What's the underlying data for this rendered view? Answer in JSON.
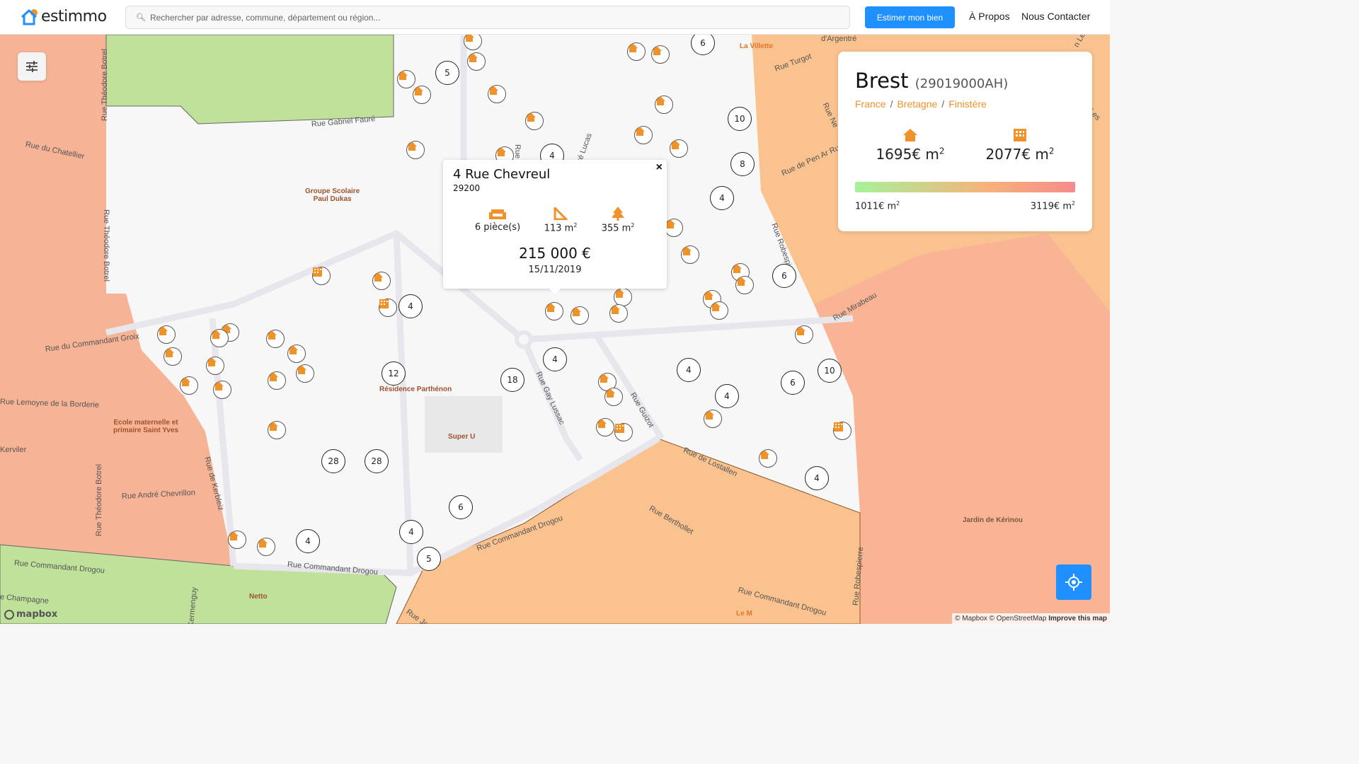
{
  "header": {
    "logo": "estimmo",
    "search_placeholder": "Rechercher par adresse, commune, département ou région...",
    "estimate_button": "Estimer mon bien",
    "nav": [
      "À Propos",
      "Nous Contacter"
    ]
  },
  "colors": {
    "accent": "#1e90ff",
    "brand_orange": "#f0922a",
    "zone_red": "#f7b395",
    "zone_orange": "#fac28e",
    "zone_green": "#bfe19a"
  },
  "map": {
    "streets": [
      "Rue Théodore Botrel",
      "Rue Gabriel Fauré",
      "Rue du Chatellier",
      "Rue Théodore Botrel",
      "Rue du Commandant Groix",
      "Rue Lemoyne de la Borderie",
      "Kerviler",
      "Rue de Kerbleiz",
      "Rue André Chevrillon",
      "Rue Théodore Botrel",
      "Rue Commandant Drogou",
      "Rue Commandant Drogou",
      "e Champagne",
      "Kermenguy",
      "Rue Commandant Drogou",
      "Rue Gay Lussac",
      "Rue Guizot",
      "Rue de Lostallen",
      "Rue Berthollet",
      "Rue Commandant Drogou",
      "Rue Robespierre",
      "Rue Mirabeau",
      "Rue Robespierre",
      "Rue Turgot",
      "Rue de Pen Ar Ru",
      "Rue Ne",
      "Rue Josen",
      "Rue L",
      "siré Lucas",
      "d'Argentré",
      "n Le B",
      "Les"
    ],
    "pois": [
      "Groupe Scolaire\nPaul Dukas",
      "Résidence Parthénon",
      "Ecole maternelle et\nprimaire Saint Yves",
      "Super U",
      "Netto",
      "La Villette",
      "Jardin de Kérinou",
      "Le M"
    ],
    "clusters": [
      "5",
      "6",
      "10",
      "8",
      "4",
      "4",
      "4",
      "6",
      "4",
      "12",
      "18",
      "4",
      "4",
      "6",
      "10",
      "4",
      "6",
      "28",
      "28",
      "6",
      "4",
      "4",
      "5"
    ],
    "attribution": "© Mapbox © OpenStreetMap",
    "improve": "Improve this map",
    "mapbox_logo": "mapbox"
  },
  "popup": {
    "address": "4 Rue Chevreul",
    "zip": "29200",
    "rooms": "6 pièce(s)",
    "area": "113 m",
    "area_unit_exp": "2",
    "land": "355 m",
    "land_unit_exp": "2",
    "price": "215 000 €",
    "date": "15/11/2019",
    "close": "×",
    "icons": [
      "sofa-icon",
      "ruler-icon",
      "tree-icon"
    ]
  },
  "card": {
    "city": "Brest",
    "code": "(29019000AH)",
    "breadcrumb": [
      "France",
      "Bretagne",
      "Finistère"
    ],
    "house_price": "1695€ m",
    "apartment_price": "2077€ m",
    "exp": "2",
    "min": "1011€ m",
    "max": "3119€ m"
  }
}
